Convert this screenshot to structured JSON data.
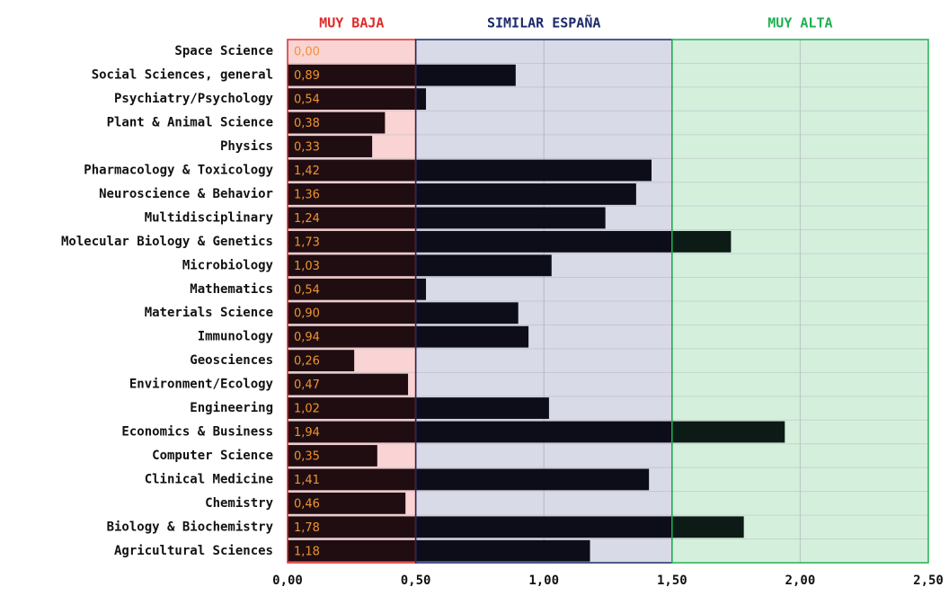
{
  "chart_data": {
    "type": "barh",
    "categories": [
      "Space Science",
      "Social Sciences, general",
      "Psychiatry/Psychology",
      "Plant & Animal Science",
      "Physics",
      "Pharmacology & Toxicology",
      "Neuroscience & Behavior",
      "Multidisciplinary",
      "Molecular Biology & Genetics",
      "Microbiology",
      "Mathematics",
      "Materials Science",
      "Immunology",
      "Geosciences",
      "Environment/Ecology",
      "Engineering",
      "Economics & Business",
      "Computer Science",
      "Clinical Medicine",
      "Chemistry",
      "Biology & Biochemistry",
      "Agricultural Sciences"
    ],
    "values": [
      0.0,
      0.89,
      0.54,
      0.38,
      0.33,
      1.42,
      1.36,
      1.24,
      1.73,
      1.03,
      0.54,
      0.9,
      0.94,
      0.26,
      0.47,
      1.02,
      1.94,
      0.35,
      1.41,
      0.46,
      1.78,
      1.18
    ],
    "value_labels": [
      "0,00",
      "0,89",
      "0,54",
      "0,38",
      "0,33",
      "1,42",
      "1,36",
      "1,24",
      "1,73",
      "1,03",
      "0,54",
      "0,90",
      "0,94",
      "0,26",
      "0,47",
      "1,02",
      "1,94",
      "0,35",
      "1,41",
      "0,46",
      "1,78",
      "1,18"
    ],
    "color": "#0b0b10",
    "value_label_color": "#f0a030",
    "xlim": [
      0,
      2.5
    ],
    "xticks": [
      {
        "value": 0,
        "label": "0,00"
      },
      {
        "value": 0.5,
        "label": "0,50"
      },
      {
        "value": 1,
        "label": "1,00"
      },
      {
        "value": 1.5,
        "label": "1,50"
      },
      {
        "value": 2,
        "label": "2,00"
      },
      {
        "value": 2.5,
        "label": "2,50"
      }
    ],
    "grid": true,
    "zones": [
      {
        "label": "MUY BAJA",
        "range": [
          0,
          0.5
        ],
        "color": "#e02828"
      },
      {
        "label": "SIMILAR ESPAÑA",
        "range": [
          0.5,
          1.5
        ],
        "color": "#1a2a6a"
      },
      {
        "label": "MUY ALTA",
        "range": [
          1.5,
          2.5
        ],
        "color": "#20b050"
      }
    ]
  }
}
